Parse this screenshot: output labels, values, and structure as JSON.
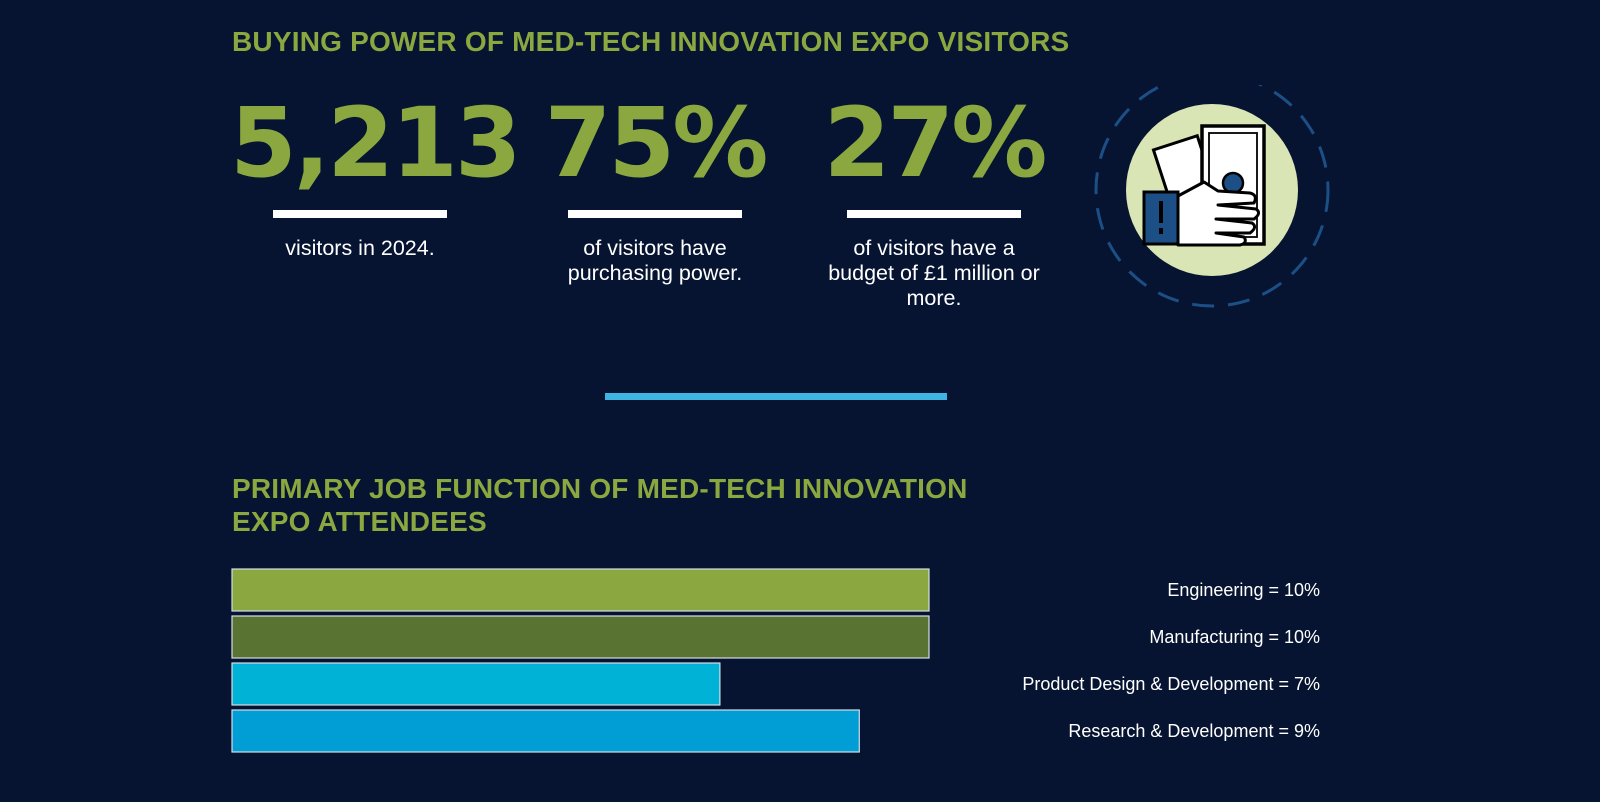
{
  "colors": {
    "background": "#061431",
    "accent_green": "#8aa83f",
    "divider": "#3fb4e3",
    "icon_circle": "#d9e5b5",
    "icon_blue": "#1b4f86"
  },
  "section1": {
    "title": "BUYING POWER OF MED-TECH INNOVATION EXPO VISITORS",
    "stats": [
      {
        "value": "5,213",
        "caption": "visitors in 2024."
      },
      {
        "value": "75%",
        "caption": "of visitors have purchasing power."
      },
      {
        "value": "27%",
        "caption": "of visitors have a budget of £1 million or more."
      }
    ],
    "icon": "money-in-hand-icon"
  },
  "section2": {
    "title": "PRIMARY JOB FUNCTION OF MED-TECH INNOVATION EXPO ATTENDEES"
  },
  "chart_data": {
    "type": "bar",
    "orientation": "horizontal",
    "categories": [
      "Engineering",
      "Manufacturing",
      "Product Design & Development",
      "Research & Development"
    ],
    "values": [
      10,
      10,
      7,
      9
    ],
    "labels": [
      "Engineering = 10%",
      "Manufacturing = 10%",
      "Product Design & Development = 7%",
      "Research & Development = 9%"
    ],
    "colors": [
      "#8aa83f",
      "#587332",
      "#00b3d6",
      "#009ed4"
    ],
    "xlim": [
      0,
      10
    ],
    "grid": false,
    "legend": "right"
  }
}
